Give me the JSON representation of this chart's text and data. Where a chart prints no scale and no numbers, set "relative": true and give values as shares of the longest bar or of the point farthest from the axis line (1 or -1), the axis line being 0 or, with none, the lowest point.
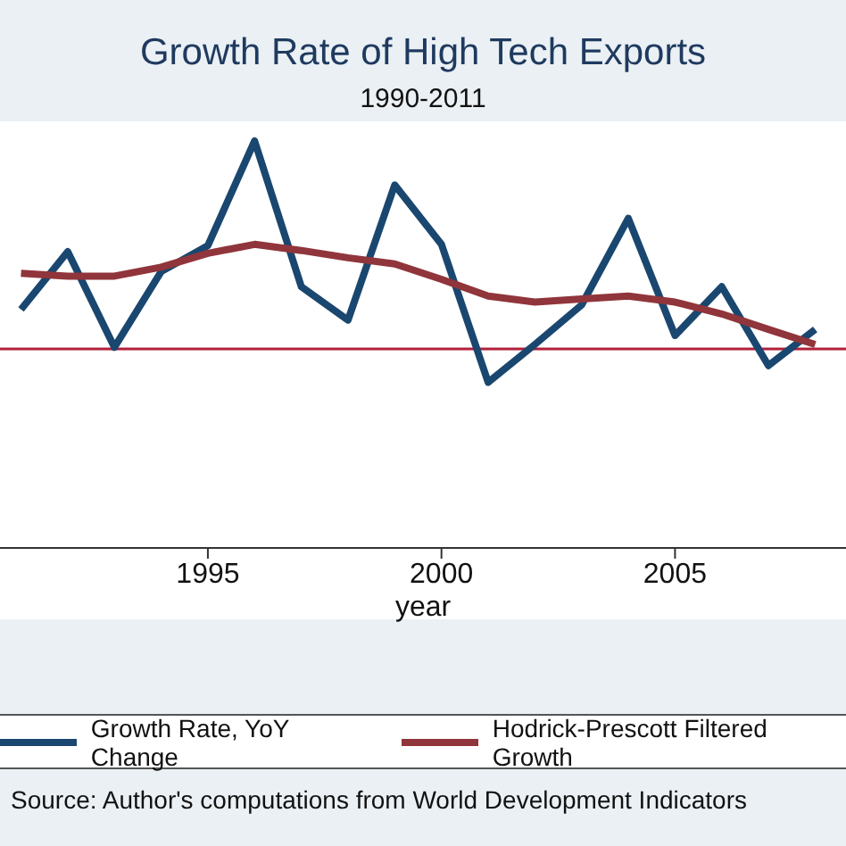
{
  "chart_data": {
    "type": "line",
    "title": "Growth Rate of High Tech Exports",
    "subtitle": "1990-2011",
    "xlabel": "year",
    "relative": true,
    "x": [
      1991,
      1992,
      1993,
      1994,
      1995,
      1996,
      1997,
      1998,
      1999,
      2000,
      2001,
      2002,
      2003,
      2004,
      2005,
      2006,
      2007,
      2008
    ],
    "xlim": [
      1990.55,
      2008.66
    ],
    "xticks": [
      1995,
      2000,
      2005
    ],
    "series": [
      {
        "name": "Growth Rate, YoY Change",
        "color": "#1a476f",
        "values": [
          0.586,
          0.728,
          0.493,
          0.679,
          0.743,
          1,
          0.642,
          0.56,
          0.892,
          0.746,
          0.407,
          0.5,
          0.597,
          0.81,
          0.522,
          0.642,
          0.448,
          0.537
        ]
      },
      {
        "name": "Hodrick-Prescott Filtered Growth",
        "color": "#90353b",
        "values": [
          0.675,
          0.668,
          0.668,
          0.69,
          0.724,
          0.746,
          0.731,
          0.713,
          0.698,
          0.66,
          0.619,
          0.604,
          0.612,
          0.619,
          0.604,
          0.575,
          0.537,
          0.5
        ]
      }
    ],
    "ref_lines": [
      {
        "axis": "y",
        "value": 0.489,
        "color": "#b0203a"
      }
    ],
    "legend": "bottom",
    "marker": "none",
    "line_style": "solid",
    "annotations": [
      "Source: Author's computations from World Development Indicators"
    ]
  }
}
